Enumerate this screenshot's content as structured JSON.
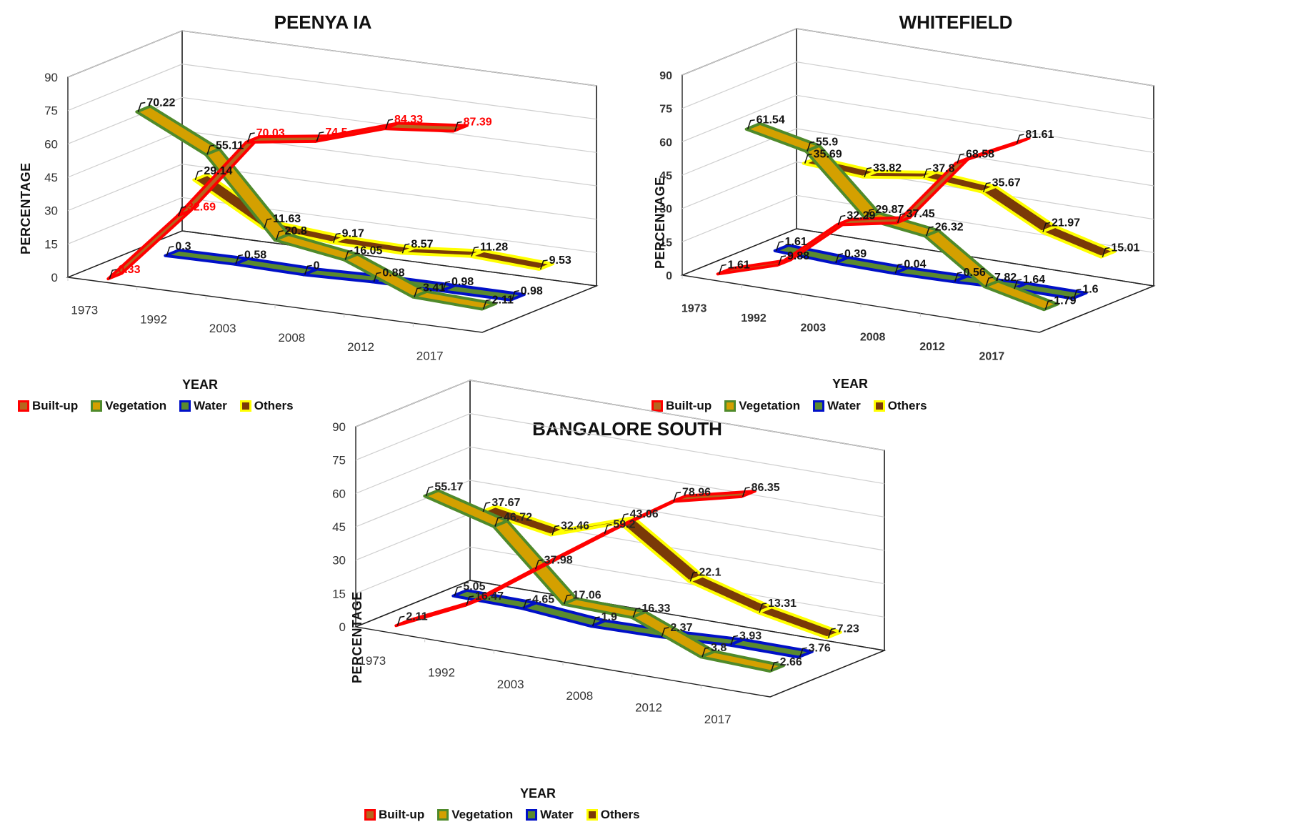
{
  "chart_data": [
    {
      "type": "line",
      "style": "3d-line",
      "title": "PEENYA IA",
      "xlabel": "YEAR",
      "ylabel": "PERCENTAGE",
      "categories": [
        "1973",
        "1992",
        "2003",
        "2008",
        "2012",
        "2017"
      ],
      "ylim": [
        0,
        90
      ],
      "yticks": [
        0,
        15,
        30,
        45,
        60,
        75,
        90
      ],
      "grid": true,
      "legend_position": "bottom-left",
      "series": [
        {
          "name": "Built-up",
          "values": [
            0.33,
            32.69,
            70.03,
            74.5,
            84.33,
            87.39
          ],
          "label_color": "#ff0000"
        },
        {
          "name": "Vegetation",
          "values": [
            70.22,
            55.11,
            20.8,
            16.05,
            3.41,
            2.11
          ],
          "label_color": "#111111"
        },
        {
          "name": "Water",
          "values": [
            0.3,
            0.58,
            0,
            0.88,
            0.98,
            0.98
          ],
          "label_color": "#111111"
        },
        {
          "name": "Others",
          "values": [
            29.14,
            11.63,
            9.17,
            8.57,
            11.28,
            9.53
          ],
          "label_color": "#111111"
        }
      ]
    },
    {
      "type": "line",
      "style": "3d-line",
      "title": "WHITEFIELD",
      "xlabel": "YEAR",
      "ylabel": "PERCENTAGE",
      "categories": [
        "1973",
        "1992",
        "2003",
        "2008",
        "2012",
        "2017"
      ],
      "ylim": [
        0,
        90
      ],
      "yticks": [
        0,
        15,
        30,
        45,
        60,
        75,
        90
      ],
      "grid": true,
      "legend_position": "bottom-left",
      "series": [
        {
          "name": "Built-up",
          "values": [
            1.61,
            9.88,
            32.29,
            37.45,
            68.58,
            81.61
          ],
          "label_color": "#111111"
        },
        {
          "name": "Vegetation",
          "values": [
            61.54,
            55.9,
            29.87,
            26.32,
            7.82,
            1.79
          ],
          "label_color": "#111111"
        },
        {
          "name": "Water",
          "values": [
            1.61,
            0.39,
            0.04,
            0.56,
            1.64,
            1.6
          ],
          "label_color": "#111111"
        },
        {
          "name": "Others",
          "values": [
            35.69,
            33.82,
            37.8,
            35.67,
            21.97,
            15.01
          ],
          "label_color": "#111111"
        }
      ]
    },
    {
      "type": "line",
      "style": "3d-line",
      "title": "BANGALORE SOUTH",
      "xlabel": "YEAR",
      "ylabel": "PERCENTAGE",
      "categories": [
        "1973",
        "1992",
        "2003",
        "2008",
        "2012",
        "2017"
      ],
      "ylim": [
        0,
        90
      ],
      "yticks": [
        0,
        15,
        30,
        45,
        60,
        75,
        90
      ],
      "grid": true,
      "legend_position": "bottom-left",
      "series": [
        {
          "name": "Built-up",
          "values": [
            2.11,
            16.47,
            37.98,
            59.2,
            78.96,
            86.35
          ],
          "label_color": "#222222"
        },
        {
          "name": "Vegetation",
          "values": [
            55.17,
            46.72,
            17.06,
            16.33,
            3.8,
            2.66
          ],
          "label_color": "#222222"
        },
        {
          "name": "Water",
          "values": [
            5.05,
            4.65,
            1.9,
            2.37,
            3.93,
            3.76
          ],
          "label_color": "#222222"
        },
        {
          "name": "Others",
          "values": [
            37.67,
            32.46,
            43.06,
            22.1,
            13.31,
            7.23
          ],
          "label_color": "#222222"
        }
      ]
    }
  ],
  "series_styles": {
    "Built-up": {
      "border": "#ff0000",
      "fill": "#b5651d"
    },
    "Vegetation": {
      "border": "#4f8a2b",
      "fill": "#d4a000"
    },
    "Water": {
      "border": "#0010c8",
      "fill": "#5b8a2e"
    },
    "Others": {
      "border": "#ffff00",
      "fill": "#7a3a08"
    }
  },
  "legend": [
    "Built-up",
    "Vegetation",
    "Water",
    "Others"
  ]
}
